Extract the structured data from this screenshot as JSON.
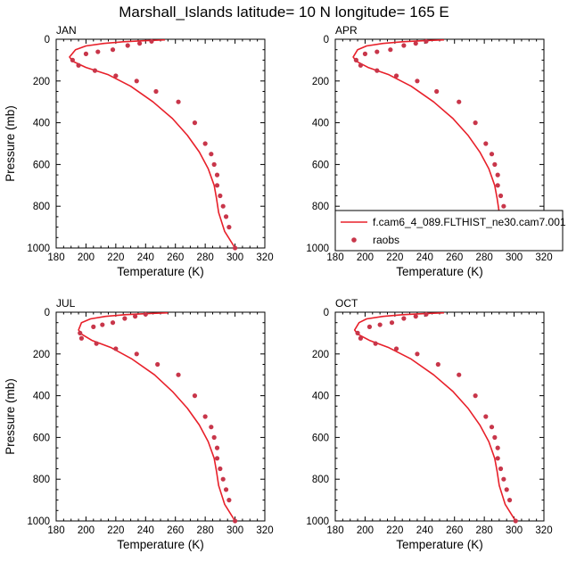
{
  "title": "Marshall_Islands  latitude= 10 N longitude= 165 E",
  "colors": {
    "model_line": "#e8202a",
    "obs_marker": "#c8364a",
    "axis": "#000000"
  },
  "legend": {
    "model_label": "f.cam6_4_089.FLTHIST_ne30.cam7.001",
    "obs_label": "raobs",
    "panel": "APR"
  },
  "chart_data": [
    {
      "panel": "JAN",
      "type": "line",
      "xlabel": "Temperature (K)",
      "ylabel": "Pressure (mb)",
      "xlim": [
        180,
        320
      ],
      "ylim": [
        1000,
        0
      ],
      "xticks": [
        180,
        200,
        220,
        240,
        260,
        280,
        300,
        320
      ],
      "yticks": [
        0,
        200,
        400,
        600,
        800,
        1000
      ],
      "series": [
        {
          "name": "f.cam6_4_089.FLTHIST_ne30.cam7.001",
          "kind": "line",
          "x": [
            253,
            240,
            225,
            212,
            200,
            193,
            189,
            191,
            200,
            215,
            230,
            245,
            258,
            268,
            276,
            282,
            286,
            287.5,
            289,
            293,
            300
          ],
          "y": [
            3,
            7,
            12,
            20,
            32,
            50,
            85,
            105,
            135,
            170,
            225,
            300,
            380,
            460,
            540,
            620,
            700,
            760,
            830,
            920,
            1000
          ]
        },
        {
          "name": "raobs",
          "kind": "points",
          "x": [
            244,
            236,
            228,
            218,
            208,
            200,
            191,
            195,
            206,
            220,
            234,
            247,
            262,
            273,
            280,
            284,
            286,
            288,
            288,
            290,
            292,
            294,
            296,
            300
          ],
          "y": [
            10,
            20,
            30,
            50,
            60,
            70,
            100,
            125,
            150,
            175,
            200,
            250,
            300,
            400,
            500,
            550,
            600,
            650,
            700,
            750,
            800,
            850,
            900,
            1000
          ]
        }
      ]
    },
    {
      "panel": "APR",
      "type": "line",
      "xlabel": "Temperature (K)",
      "ylabel": "",
      "xlim": [
        180,
        320
      ],
      "ylim": [
        1000,
        0
      ],
      "xticks": [
        180,
        200,
        220,
        240,
        260,
        280,
        300,
        320
      ],
      "yticks": [
        0,
        200,
        400,
        600,
        800,
        1000
      ],
      "series": [
        {
          "name": "f.cam6_4_089.FLTHIST_ne30.cam7.001",
          "kind": "line",
          "x": [
            253,
            240,
            225,
            212,
            201,
            195,
            192,
            194,
            202,
            216,
            231,
            246,
            259,
            269,
            277,
            283,
            287,
            288.5,
            290,
            294,
            301
          ],
          "y": [
            3,
            7,
            12,
            20,
            32,
            50,
            85,
            105,
            135,
            170,
            225,
            300,
            380,
            460,
            540,
            620,
            700,
            760,
            830,
            920,
            1000
          ]
        },
        {
          "name": "raobs",
          "kind": "points",
          "x": [
            241,
            234,
            226,
            217,
            208,
            200,
            194,
            197,
            208,
            221,
            235,
            248,
            263,
            274,
            281,
            285,
            287,
            289,
            289,
            291,
            293,
            295,
            297,
            301
          ],
          "y": [
            10,
            20,
            30,
            50,
            60,
            70,
            100,
            125,
            150,
            175,
            200,
            250,
            300,
            400,
            500,
            550,
            600,
            650,
            700,
            750,
            800,
            850,
            900,
            1000
          ]
        }
      ]
    },
    {
      "panel": "JUL",
      "type": "line",
      "xlabel": "Temperature (K)",
      "ylabel": "Pressure (mb)",
      "xlim": [
        180,
        320
      ],
      "ylim": [
        1000,
        0
      ],
      "xticks": [
        180,
        200,
        220,
        240,
        260,
        280,
        300,
        320
      ],
      "yticks": [
        0,
        200,
        400,
        600,
        800,
        1000
      ],
      "series": [
        {
          "name": "f.cam6_4_089.FLTHIST_ne30.cam7.001",
          "kind": "line",
          "x": [
            255,
            241,
            226,
            213,
            203,
            197,
            195,
            197,
            204,
            217,
            231,
            246,
            258,
            268,
            276,
            282,
            286,
            287.5,
            289,
            293,
            300
          ],
          "y": [
            3,
            7,
            12,
            20,
            32,
            50,
            85,
            105,
            135,
            170,
            225,
            300,
            380,
            460,
            540,
            620,
            700,
            760,
            830,
            920,
            1000
          ]
        },
        {
          "name": "raobs",
          "kind": "points",
          "x": [
            240,
            233,
            226,
            218,
            211,
            205,
            196,
            197,
            207,
            220,
            234,
            248,
            262,
            273,
            280,
            284,
            286,
            288,
            288,
            290,
            292,
            294,
            296,
            300
          ],
          "y": [
            10,
            20,
            30,
            50,
            60,
            70,
            100,
            125,
            150,
            175,
            200,
            250,
            300,
            400,
            500,
            550,
            600,
            650,
            700,
            750,
            800,
            850,
            900,
            1000
          ]
        }
      ]
    },
    {
      "panel": "OCT",
      "type": "line",
      "xlabel": "Temperature (K)",
      "ylabel": "",
      "xlim": [
        180,
        320
      ],
      "ylim": [
        1000,
        0
      ],
      "xticks": [
        180,
        200,
        220,
        240,
        260,
        280,
        300,
        320
      ],
      "yticks": [
        0,
        200,
        400,
        600,
        800,
        1000
      ],
      "series": [
        {
          "name": "f.cam6_4_089.FLTHIST_ne30.cam7.001",
          "kind": "line",
          "x": [
            253,
            240,
            225,
            212,
            201,
            196,
            193,
            195,
            203,
            216,
            231,
            246,
            259,
            269,
            277,
            283,
            287,
            288.5,
            290,
            294,
            301
          ],
          "y": [
            3,
            7,
            12,
            20,
            32,
            50,
            85,
            105,
            135,
            170,
            225,
            300,
            380,
            460,
            540,
            620,
            700,
            760,
            830,
            920,
            1000
          ]
        },
        {
          "name": "raobs",
          "kind": "points",
          "x": [
            241,
            234,
            226,
            218,
            210,
            203,
            195,
            197,
            207,
            221,
            235,
            249,
            263,
            274,
            281,
            285,
            287,
            289,
            289,
            291,
            293,
            295,
            297,
            301
          ],
          "y": [
            10,
            20,
            30,
            50,
            60,
            70,
            100,
            125,
            150,
            175,
            200,
            250,
            300,
            400,
            500,
            550,
            600,
            650,
            700,
            750,
            800,
            850,
            900,
            1000
          ]
        }
      ]
    }
  ]
}
